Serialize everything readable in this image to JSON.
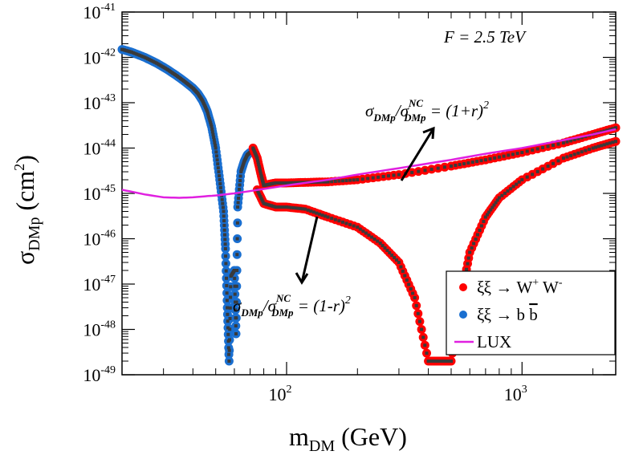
{
  "chart_data": {
    "type": "scatter",
    "title": "F = 2.5 TeV",
    "xlabel": {
      "main": "m",
      "sub": "DM",
      "unit": " (GeV)"
    },
    "ylabel": {
      "main": "σ",
      "sub": "DMp",
      "unit_open": " (cm",
      "unit_sup": "2",
      "unit_close": ")"
    },
    "xscale": "log",
    "yscale": "log",
    "xlim": [
      20,
      2500
    ],
    "ylim": [
      1e-49,
      1e-41
    ],
    "x_ticks": [
      {
        "value": 100,
        "base": "10",
        "exp": "2"
      },
      {
        "value": 1000,
        "base": "10",
        "exp": "3"
      }
    ],
    "y_ticks": [
      {
        "value": 1e-41,
        "base": "10",
        "exp": "-41"
      },
      {
        "value": 1e-42,
        "base": "10",
        "exp": "-42"
      },
      {
        "value": 1e-43,
        "base": "10",
        "exp": "-43"
      },
      {
        "value": 1e-44,
        "base": "10",
        "exp": "-44"
      },
      {
        "value": 1e-45,
        "base": "10",
        "exp": "-45"
      },
      {
        "value": 1e-46,
        "base": "10",
        "exp": "-46"
      },
      {
        "value": 1e-47,
        "base": "10",
        "exp": "-47"
      },
      {
        "value": 1e-48,
        "base": "10",
        "exp": "-48"
      },
      {
        "value": 1e-49,
        "base": "10",
        "exp": "-49"
      }
    ],
    "annotations": [
      {
        "name": "annotation-plus",
        "label_pre": "σ",
        "sub1": "DMp",
        "slash": "/σ",
        "sup2": "NC",
        "sub2": "DMp",
        "rest": " = (1+r)",
        "exp": "2"
      },
      {
        "name": "annotation-minus",
        "label_pre": "σ",
        "sub1": "DMp",
        "slash": "/σ",
        "sup2": "NC",
        "sub2": "DMp",
        "rest": " = (1-r)",
        "exp": "2"
      }
    ],
    "legend": {
      "placement": "bottom-right",
      "entries": [
        {
          "label": "ξξ → W",
          "sup1": "+",
          "mid": " W",
          "sup2": "-",
          "color": "#ff0000",
          "marker": "circle"
        },
        {
          "label": "ξξ → b ",
          "bar": "b",
          "color": "#1a6fd0",
          "marker": "circle"
        },
        {
          "label": "LUX",
          "color": "#e020e0",
          "marker": "line"
        }
      ]
    },
    "series": [
      {
        "name": "ξξ → b b̄",
        "color": "#1a6fd0",
        "points": [
          [
            20,
            1.5e-42
          ],
          [
            22,
            1.3e-42
          ],
          [
            25,
            1e-42
          ],
          [
            28,
            7.5e-43
          ],
          [
            31,
            5.5e-43
          ],
          [
            34,
            4e-43
          ],
          [
            37,
            2.9e-43
          ],
          [
            40,
            2.1e-43
          ],
          [
            42,
            1.6e-43
          ],
          [
            44,
            1.1e-43
          ],
          [
            46,
            6.5e-44
          ],
          [
            48,
            3e-44
          ],
          [
            50,
            1e-44
          ],
          [
            52,
            2e-45
          ],
          [
            54,
            4e-46
          ],
          [
            55,
            6e-47
          ],
          [
            56,
            3e-48
          ],
          [
            57,
            2e-49
          ],
          [
            58,
            1.5e-47
          ],
          [
            60,
            2e-47
          ],
          [
            61,
            8e-49
          ],
          [
            62,
            5e-46
          ],
          [
            64,
            3e-45
          ],
          [
            66,
            5e-45
          ],
          [
            68,
            7e-45
          ],
          [
            70,
            8e-45
          ]
        ]
      },
      {
        "name": "ξξ → W+ W- (1+r)^2",
        "color": "#ff0000",
        "points": [
          [
            72,
            1e-44
          ],
          [
            75,
            6e-45
          ],
          [
            78,
            2.5e-45
          ],
          [
            80,
            1.5e-45
          ],
          [
            85,
            1.6e-45
          ],
          [
            90,
            1.7e-45
          ],
          [
            100,
            1.7e-45
          ],
          [
            120,
            1.75e-45
          ],
          [
            150,
            1.8e-45
          ],
          [
            200,
            2e-45
          ],
          [
            300,
            2.6e-45
          ],
          [
            500,
            4e-45
          ],
          [
            700,
            5.5e-45
          ],
          [
            1000,
            8e-45
          ],
          [
            1500,
            1.3e-44
          ],
          [
            2000,
            2e-44
          ],
          [
            2500,
            2.8e-44
          ]
        ]
      },
      {
        "name": "ξξ → W+ W- (1-r)^2",
        "color": "#ff0000",
        "points": [
          [
            75,
            1.2e-45
          ],
          [
            80,
            6e-46
          ],
          [
            90,
            5e-46
          ],
          [
            100,
            5e-46
          ],
          [
            120,
            4.5e-46
          ],
          [
            150,
            3e-46
          ],
          [
            200,
            1.8e-46
          ],
          [
            250,
            8e-47
          ],
          [
            300,
            3e-47
          ],
          [
            350,
            5e-48
          ],
          [
            400,
            2e-49
          ],
          [
            450,
            2e-49
          ],
          [
            500,
            2e-49
          ],
          [
            550,
            5e-48
          ],
          [
            600,
            5e-47
          ],
          [
            700,
            3e-46
          ],
          [
            800,
            8e-46
          ],
          [
            1000,
            2e-45
          ],
          [
            1500,
            6e-45
          ],
          [
            2000,
            1e-44
          ],
          [
            2500,
            1.4e-44
          ]
        ]
      },
      {
        "name": "LUX",
        "color": "#e020e0",
        "points": [
          [
            20,
            1.2e-45
          ],
          [
            25,
            9.5e-46
          ],
          [
            30,
            8.2e-46
          ],
          [
            35,
            8e-46
          ],
          [
            40,
            8.2e-46
          ],
          [
            50,
            9e-46
          ],
          [
            60,
            1e-45
          ],
          [
            80,
            1.25e-45
          ],
          [
            100,
            1.5e-45
          ],
          [
            150,
            2e-45
          ],
          [
            200,
            2.6e-45
          ],
          [
            300,
            3.6e-45
          ],
          [
            500,
            5.5e-45
          ],
          [
            700,
            7.5e-45
          ],
          [
            1000,
            1e-44
          ],
          [
            1500,
            1.5e-44
          ],
          [
            2000,
            2e-44
          ],
          [
            2500,
            2.6e-44
          ]
        ]
      }
    ]
  }
}
